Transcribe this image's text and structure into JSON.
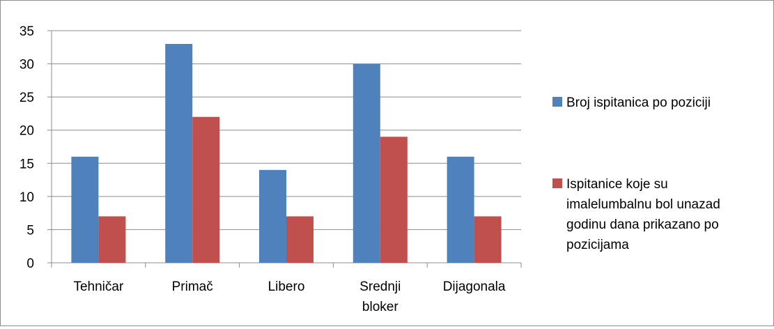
{
  "chart_data": {
    "type": "bar",
    "categories": [
      "Tehničar",
      "Primač",
      "Libero",
      "Srednji bloker",
      "Dijagonala"
    ],
    "category_lines": [
      [
        "Tehničar"
      ],
      [
        "Primač"
      ],
      [
        "Libero"
      ],
      [
        "Srednji",
        "bloker"
      ],
      [
        "Dijagonala"
      ]
    ],
    "series": [
      {
        "name": "Broj ispitanica po poziciji",
        "values": [
          16,
          33,
          14,
          30,
          16
        ],
        "color": "#4f81bd"
      },
      {
        "name": "Ispitanice koje su imalelumbalnu bol unazad godinu dana prikazano po pozicijama",
        "values": [
          7,
          22,
          7,
          19,
          7
        ],
        "color": "#c0504d"
      }
    ],
    "legend_lines": [
      [
        "Broj ispitanica po poziciji"
      ],
      [
        "Ispitanice koje su",
        "imalelumbalnu bol unazad",
        "godinu dana prikazano po",
        "pozicijama"
      ]
    ],
    "ylim": [
      0,
      35
    ],
    "yticks": [
      "0",
      "5",
      "10",
      "15",
      "20",
      "25",
      "30",
      "35"
    ],
    "grid": true,
    "legend_position": "right"
  }
}
